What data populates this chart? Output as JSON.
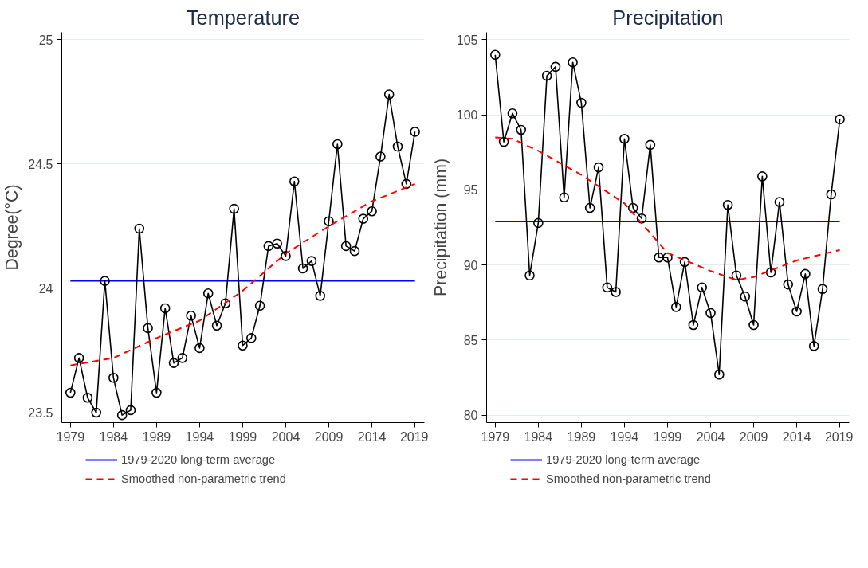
{
  "chart_data": [
    {
      "type": "line",
      "title": "Temperature",
      "ylabel": "Degree(°C)",
      "x": [
        1979,
        1980,
        1981,
        1982,
        1983,
        1984,
        1985,
        1986,
        1987,
        1988,
        1989,
        1990,
        1991,
        1992,
        1993,
        1994,
        1995,
        1996,
        1997,
        1998,
        1999,
        2000,
        2001,
        2002,
        2003,
        2004,
        2005,
        2006,
        2007,
        2008,
        2009,
        2010,
        2011,
        2012,
        2013,
        2014,
        2015,
        2016,
        2017,
        2018,
        2019
      ],
      "xlim": [
        1978,
        2020.1
      ],
      "xticks": [
        1979,
        1984,
        1989,
        1994,
        1999,
        2004,
        2009,
        2014,
        2019
      ],
      "ylim": [
        23.46,
        25.03
      ],
      "yticks": [
        23.5,
        24,
        24.5,
        25
      ],
      "grid": "y",
      "legend": "bottom",
      "series": [
        {
          "color": "#000000",
          "marker": "circle",
          "values": [
            23.58,
            23.72,
            23.56,
            23.5,
            24.03,
            23.64,
            23.49,
            23.51,
            24.24,
            23.84,
            23.58,
            23.92,
            23.7,
            23.72,
            23.89,
            23.76,
            23.98,
            23.85,
            23.94,
            24.32,
            23.77,
            23.8,
            23.93,
            24.17,
            24.18,
            24.13,
            24.43,
            24.08,
            24.11,
            23.97,
            24.27,
            24.58,
            24.17,
            24.15,
            24.28,
            24.31,
            24.53,
            24.78,
            24.57,
            24.42,
            24.63
          ]
        },
        {
          "name": "Smoothed non-parametric trend",
          "color": "#ff0000",
          "line_style": "dashed",
          "x": [
            1979,
            1984,
            1989,
            1994,
            1999,
            2004,
            2009,
            2014,
            2019
          ],
          "values": [
            23.69,
            23.72,
            23.8,
            23.87,
            23.99,
            24.14,
            24.25,
            24.35,
            24.42
          ]
        }
      ],
      "ref_lines": [
        {
          "axis": "y",
          "value": 24.03,
          "label": "1979-2020 long-term average",
          "color": "#0000ff",
          "line_style": "solid"
        }
      ]
    },
    {
      "type": "line",
      "title": "Precipitation",
      "ylabel": "Precipitation (mm)",
      "x": [
        1979,
        1980,
        1981,
        1982,
        1983,
        1984,
        1985,
        1986,
        1987,
        1988,
        1989,
        1990,
        1991,
        1992,
        1993,
        1994,
        1995,
        1996,
        1997,
        1998,
        1999,
        2000,
        2001,
        2002,
        2003,
        2004,
        2005,
        2006,
        2007,
        2008,
        2009,
        2010,
        2011,
        2012,
        2013,
        2014,
        2015,
        2016,
        2017,
        2018,
        2019
      ],
      "xlim": [
        1978,
        2020.1
      ],
      "xticks": [
        1979,
        1984,
        1989,
        1994,
        1999,
        2004,
        2009,
        2014,
        2019
      ],
      "ylim": [
        79.5,
        105.5
      ],
      "yticks": [
        80,
        85,
        90,
        95,
        100,
        105
      ],
      "grid": "y",
      "legend": "bottom",
      "series": [
        {
          "color": "#000000",
          "marker": "circle",
          "values": [
            104.0,
            98.2,
            100.1,
            99.0,
            89.3,
            92.8,
            102.6,
            103.2,
            94.5,
            103.5,
            100.8,
            93.8,
            96.5,
            88.5,
            88.2,
            98.4,
            93.8,
            93.1,
            98.0,
            90.5,
            90.5,
            87.2,
            90.2,
            86.0,
            88.5,
            86.8,
            82.7,
            94.0,
            89.3,
            87.9,
            86.0,
            95.9,
            89.5,
            94.2,
            88.7,
            86.9,
            89.4,
            84.6,
            88.4,
            94.7,
            99.7
          ]
        },
        {
          "name": "Smoothed non-parametric trend",
          "color": "#ff0000",
          "line_style": "dashed",
          "x": [
            1979,
            1981,
            1984,
            1989,
            1994,
            1999,
            2004,
            2007,
            2009,
            2014,
            2019
          ],
          "values": [
            98.5,
            98.4,
            97.6,
            96.0,
            94.1,
            90.8,
            89.6,
            89.0,
            89.2,
            90.3,
            91.0
          ]
        }
      ],
      "ref_lines": [
        {
          "axis": "y",
          "value": 92.9,
          "label": "1979-2020 long-term average",
          "color": "#0000ff",
          "line_style": "solid"
        }
      ]
    }
  ]
}
